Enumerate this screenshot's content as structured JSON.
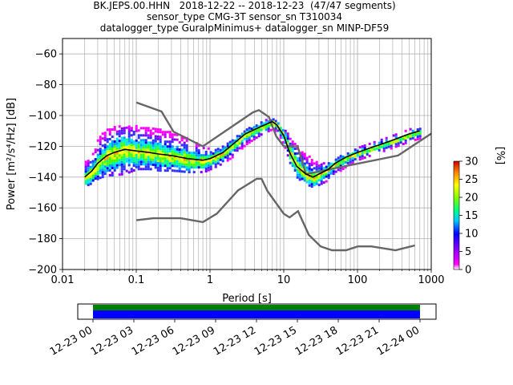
{
  "title_lines": [
    "BK.JEPS.00.HHN   2018-12-22 -- 2018-12-23  (47/47 segments)",
    "sensor_type CMG-3T sensor_sn T310034",
    "datalogger_type GuralpMinimus+ datalogger_sn MINP-DF59"
  ],
  "chart_data": [
    {
      "type": "heatmap",
      "xlabel": "Period [s]",
      "ylabel": "Power [m²/s⁴/Hz] [dB]",
      "xscale": "log",
      "xlim": [
        0.01,
        1000
      ],
      "ylim": [
        -200,
        -50
      ],
      "xticks": [
        0.01,
        0.1,
        1,
        10,
        100,
        1000
      ],
      "xtick_labels": [
        "0.01",
        "0.1",
        "1",
        "10",
        "100",
        "1000"
      ],
      "yticks": [
        -200,
        -180,
        -160,
        -140,
        -120,
        -100,
        -80,
        -60
      ],
      "grid": true,
      "mode_curve": {
        "x": [
          0.02,
          0.025,
          0.03,
          0.04,
          0.05,
          0.07,
          0.1,
          0.15,
          0.2,
          0.3,
          0.5,
          0.8,
          1.0,
          1.5,
          2,
          3,
          5,
          7,
          8,
          10,
          12,
          15,
          20,
          25,
          30,
          40,
          50,
          70,
          100,
          150,
          200,
          300,
          500,
          700
        ],
        "y": [
          -140,
          -136,
          -131,
          -126,
          -124,
          -122,
          -123,
          -124,
          -125,
          -126,
          -128,
          -129,
          -128,
          -124,
          -119,
          -112,
          -107,
          -104,
          -106,
          -113,
          -124,
          -133,
          -138,
          -140,
          -138,
          -135,
          -131,
          -127,
          -124,
          -121,
          -119,
          -116,
          -112,
          -110
        ]
      },
      "high_noise_model": {
        "x": [
          0.1,
          0.22,
          0.32,
          0.8,
          3.8,
          4.6,
          6.3,
          7.9,
          10,
          15.4,
          20,
          354.8,
          10000
        ],
        "y": [
          -91.5,
          -97.4,
          -110.5,
          -120,
          -98,
          -96.5,
          -101,
          -113.5,
          -120,
          -120,
          -138,
          -126,
          -80.1
        ]
      },
      "low_noise_model": {
        "x": [
          0.1,
          0.17,
          0.4,
          0.8,
          1.24,
          2.4,
          4.3,
          5,
          6,
          10,
          12,
          15.6,
          21.9,
          31.6,
          45,
          70,
          101,
          154,
          328,
          600
        ],
        "y": [
          -168,
          -166.7,
          -166.7,
          -169.2,
          -163.7,
          -148.6,
          -141.1,
          -141.1,
          -149,
          -163.8,
          -166.2,
          -162.1,
          -177.5,
          -185,
          -187.5,
          -187.5,
          -185,
          -185,
          -187.5,
          -184.4
        ]
      },
      "psd_band": {
        "x": [
          0.02,
          0.025,
          0.03,
          0.04,
          0.05,
          0.07,
          0.1,
          0.15,
          0.2,
          0.3,
          0.5,
          0.8,
          1.0,
          1.5,
          2,
          3,
          5,
          7,
          8,
          10,
          12,
          15,
          20,
          25,
          30,
          40,
          50,
          70,
          100,
          150,
          200,
          300,
          500,
          700
        ],
        "upper": [
          -128,
          -123,
          -113,
          -108,
          -106,
          -106,
          -106,
          -107,
          -108,
          -110,
          -114,
          -120,
          -120,
          -118,
          -114,
          -108,
          -102,
          -101,
          -103,
          -108,
          -112,
          -118,
          -124,
          -128,
          -130,
          -129,
          -127,
          -123,
          -120,
          -117,
          -115,
          -112,
          -108,
          -107
        ],
        "lower": [
          -145,
          -143,
          -140,
          -138,
          -138,
          -137,
          -134,
          -134,
          -135,
          -135,
          -136,
          -136,
          -134,
          -130,
          -126,
          -118,
          -111,
          -108,
          -110,
          -119,
          -131,
          -140,
          -144,
          -146,
          -144,
          -141,
          -137,
          -132,
          -128,
          -125,
          -123,
          -120,
          -116,
          -114
        ]
      },
      "colorbar": {
        "label": "[%]",
        "range": [
          0,
          30
        ],
        "ticks": [
          0,
          5,
          10,
          15,
          20,
          25,
          30
        ]
      }
    },
    {
      "type": "timeline",
      "tick_labels": [
        "12-23 00",
        "12-23 03",
        "12-23 06",
        "12-23 09",
        "12-23 12",
        "12-23 15",
        "12-23 18",
        "12-23 21",
        "12-24 00"
      ],
      "coverage_fraction": [
        0,
        1
      ],
      "coverage_color": "#0000ff",
      "availability_color": "#008000"
    }
  ]
}
